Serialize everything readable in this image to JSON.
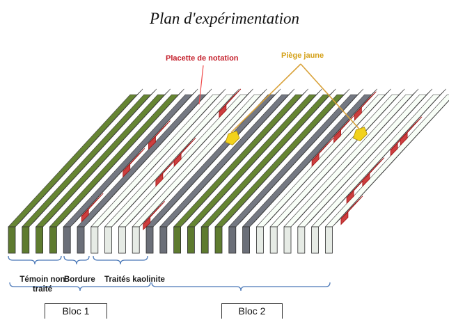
{
  "title": "Plan d'expérimentation",
  "labels": {
    "placette": "Placette de notation",
    "piege": "Piège jaune",
    "temoin": "Témoin non traité",
    "bordure": "Bordure",
    "traites": "Traités kaolinite"
  },
  "blocs": [
    "Bloc 1",
    "Bloc 2"
  ],
  "row_types": [
    "green",
    "green",
    "green",
    "green",
    "gray",
    "gray",
    "white",
    "white",
    "white",
    "white",
    "gray",
    "gray",
    "green",
    "green",
    "green",
    "green",
    "gray",
    "gray",
    "white",
    "white",
    "white",
    "white",
    "white",
    "white"
  ],
  "red_plots": [
    {
      "row": 4,
      "positions": [
        0.08,
        0.42,
        0.63
      ]
    },
    {
      "row": 7,
      "positions": [
        0.35,
        0.5,
        0.87
      ]
    },
    {
      "row": 9,
      "positions": [
        0.02
      ]
    },
    {
      "row": 17,
      "positions": [
        0.5,
        0.68,
        0.85
      ]
    },
    {
      "row": 22,
      "positions": [
        0.22,
        0.35,
        0.58,
        0.66
      ]
    },
    {
      "row": 23,
      "positions": [
        0.06
      ]
    }
  ],
  "traps": [
    {
      "row": 10,
      "position": 0.64
    },
    {
      "row": 19,
      "position": 0.67
    }
  ],
  "colors": {
    "green": "#5e7b2f",
    "gray": "#6b6f78",
    "white": "#e6ebe5",
    "plot": "#f04a4a",
    "trap": "#f2d21c",
    "trap_line": "#d9a23a"
  }
}
